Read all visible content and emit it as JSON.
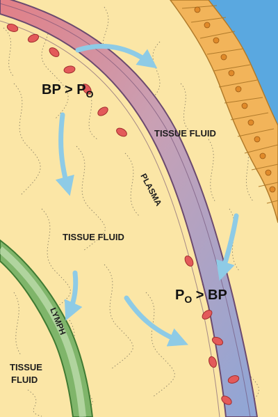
{
  "colors": {
    "tissue_fluid": "#fbe6a6",
    "artery_start": "#e58a8a",
    "vein_end": "#8fa7d6",
    "lymph": "#7fb56a",
    "epithelium": "#f2b45a",
    "lumen_blue": "#5aa8e0",
    "arrow": "#8ecbe6",
    "rbc": "#e35a5a"
  },
  "labels": {
    "bp_gt_po": {
      "left": "BP > P",
      "sub": "O"
    },
    "po_gt_bp": {
      "left": "P",
      "sub": "O",
      "right": " > BP"
    },
    "tissue_fluid_top_right": "TISSUE FLUID",
    "tissue_fluid_center": "TISSUE FLUID",
    "tissue_fluid_bottom_left_line1": "TISSUE",
    "tissue_fluid_bottom_left_line2": "FLUID",
    "plasma": "PLASMA",
    "lymph": "LYMPH"
  },
  "icons": [
    "flow-arrow-icon",
    "red-blood-cell-icon",
    "epithelial-cell-icon"
  ]
}
